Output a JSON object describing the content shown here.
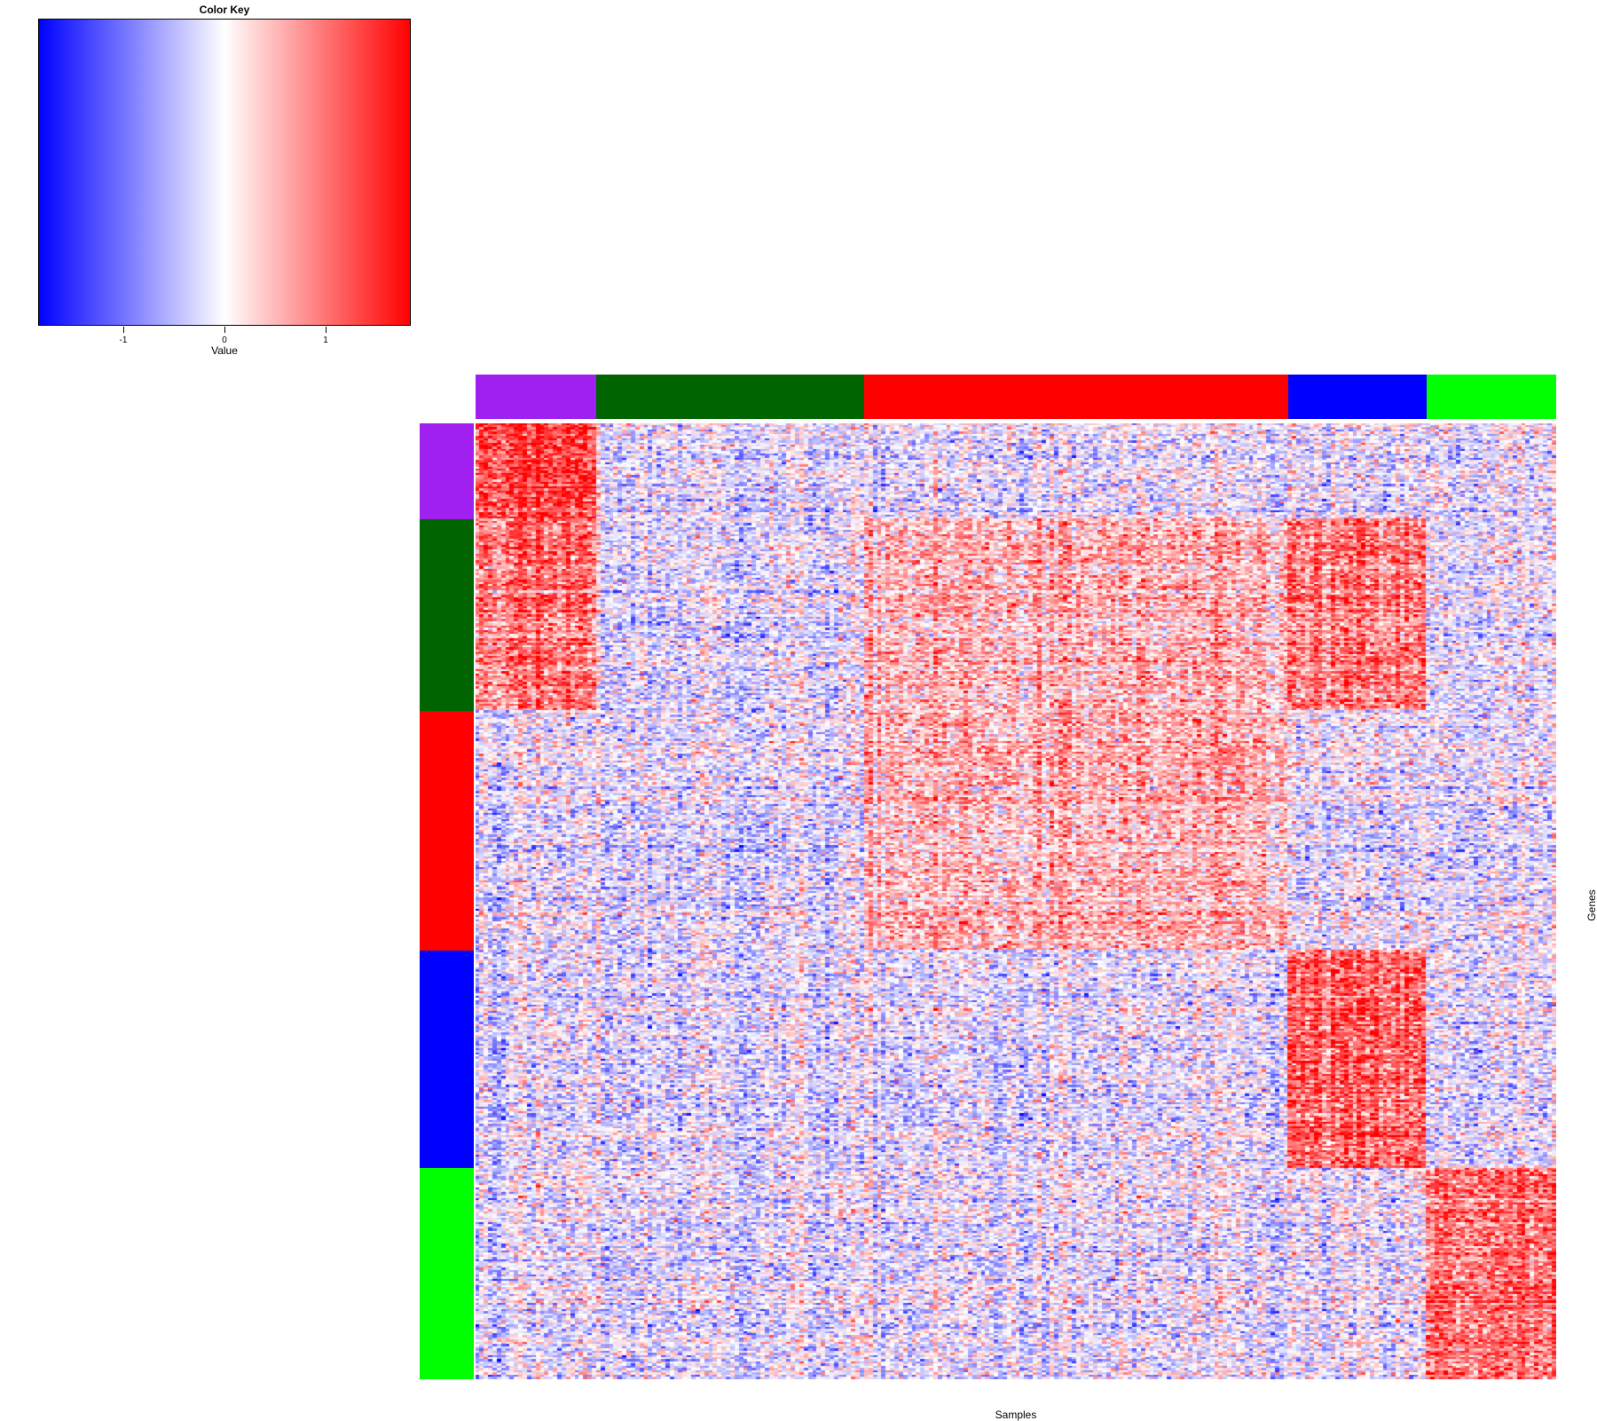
{
  "color_key": {
    "title": "Color Key",
    "xlabel": "Value",
    "gradient": [
      "#0000ff",
      "#ffffff",
      "#ff0000"
    ],
    "range": [
      -1.85,
      1.85
    ],
    "ticks": [
      "-1",
      "0",
      "1"
    ]
  },
  "chart_data": {
    "type": "heatmap",
    "title": "",
    "xlabel": "Samples",
    "ylabel": "Genes",
    "value_range": [
      -1.85,
      1.85
    ],
    "color_scale": [
      "#0000ff",
      "#ffffff",
      "#ff0000"
    ],
    "column_groups": [
      {
        "color": "#a020f0",
        "samples": 28
      },
      {
        "color": "#006400",
        "samples": 62
      },
      {
        "color": "#ff0000",
        "samples": 98
      },
      {
        "color": "#0000ff",
        "samples": 32
      },
      {
        "color": "#00ff00",
        "samples": 30
      }
    ],
    "row_groups": [
      {
        "color": "#a020f0",
        "genes": 44
      },
      {
        "color": "#006400",
        "genes": 88
      },
      {
        "color": "#ff0000",
        "genes": 110
      },
      {
        "color": "#0000ff",
        "genes": 100
      },
      {
        "color": "#00ff00",
        "genes": 97
      }
    ],
    "patterns": [
      {
        "row_group": 0,
        "col_group": 0,
        "mean": 1.4
      },
      {
        "row_group": 1,
        "col_group": 0,
        "mean": 1.0
      },
      {
        "row_group": 1,
        "col_group": 2,
        "mean": 0.5
      },
      {
        "row_group": 1,
        "col_group": 3,
        "mean": 0.9
      },
      {
        "row_group": 2,
        "col_group": 2,
        "mean": 0.5
      },
      {
        "row_group": 3,
        "col_group": 3,
        "mean": 1.1
      },
      {
        "row_group": 4,
        "col_group": 4,
        "mean": 1.0
      }
    ]
  }
}
